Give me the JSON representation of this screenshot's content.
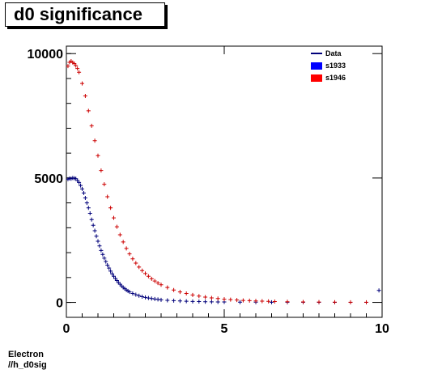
{
  "chart_data": {
    "type": "scatter",
    "title": "d0 significance",
    "xlim": [
      0,
      10
    ],
    "ylim": [
      -600,
      10300
    ],
    "x_ticks": [
      0,
      5,
      10
    ],
    "y_ticks": [
      0,
      5000,
      10000
    ],
    "legend_position": "top-right",
    "legend": [
      {
        "label": "Data",
        "style": "line",
        "color": "#00007a"
      },
      {
        "label": "s1933",
        "style": "box",
        "color": "#0000ff"
      },
      {
        "label": "s1946",
        "style": "box",
        "color": "#ff0000"
      }
    ],
    "series": [
      {
        "name": "s1933",
        "color": "#00007a",
        "x": [
          0.05,
          0.1,
          0.15,
          0.2,
          0.25,
          0.3,
          0.35,
          0.4,
          0.45,
          0.5,
          0.55,
          0.6,
          0.65,
          0.7,
          0.75,
          0.8,
          0.85,
          0.9,
          0.95,
          1.0,
          1.05,
          1.1,
          1.15,
          1.2,
          1.25,
          1.3,
          1.35,
          1.4,
          1.45,
          1.5,
          1.55,
          1.6,
          1.65,
          1.7,
          1.75,
          1.8,
          1.85,
          1.9,
          1.95,
          2.0,
          2.1,
          2.2,
          2.3,
          2.4,
          2.5,
          2.6,
          2.7,
          2.8,
          2.9,
          3.0,
          3.2,
          3.4,
          3.6,
          3.8,
          4.0,
          4.2,
          4.4,
          4.6,
          4.8,
          5.0,
          5.5,
          6.0,
          6.5,
          7.0,
          7.5,
          8.0,
          8.5,
          9.0,
          9.5,
          9.9
        ],
        "y": [
          4950,
          4980,
          4970,
          5000,
          4990,
          4970,
          4900,
          4820,
          4700,
          4560,
          4400,
          4200,
          4000,
          3800,
          3580,
          3330,
          3100,
          2880,
          2660,
          2460,
          2270,
          2090,
          1930,
          1780,
          1640,
          1500,
          1380,
          1260,
          1150,
          1050,
          960,
          880,
          800,
          730,
          660,
          600,
          550,
          500,
          460,
          420,
          360,
          310,
          270,
          230,
          200,
          175,
          155,
          135,
          120,
          105,
          85,
          70,
          58,
          48,
          40,
          34,
          28,
          24,
          20,
          17,
          12,
          9,
          7,
          5,
          4,
          3,
          2,
          2,
          1,
          480
        ]
      },
      {
        "name": "s1946",
        "color": "#cc0000",
        "x": [
          0.05,
          0.1,
          0.15,
          0.2,
          0.25,
          0.3,
          0.35,
          0.4,
          0.5,
          0.6,
          0.7,
          0.8,
          0.9,
          1.0,
          1.1,
          1.2,
          1.3,
          1.4,
          1.5,
          1.6,
          1.7,
          1.8,
          1.9,
          2.0,
          2.1,
          2.2,
          2.3,
          2.4,
          2.5,
          2.6,
          2.7,
          2.8,
          2.9,
          3.0,
          3.2,
          3.4,
          3.6,
          3.8,
          4.0,
          4.2,
          4.4,
          4.6,
          4.8,
          5.0,
          5.2,
          5.4,
          5.6,
          5.8,
          6.0,
          6.2,
          6.4,
          6.6,
          7.0,
          7.5,
          8.0,
          8.5,
          9.0,
          9.5
        ],
        "y": [
          9500,
          9650,
          9700,
          9640,
          9600,
          9520,
          9400,
          9250,
          8800,
          8300,
          7700,
          7100,
          6500,
          5900,
          5300,
          4750,
          4250,
          3800,
          3400,
          3040,
          2720,
          2430,
          2170,
          1950,
          1750,
          1580,
          1420,
          1280,
          1160,
          1050,
          950,
          860,
          780,
          710,
          600,
          500,
          420,
          360,
          300,
          255,
          215,
          180,
          155,
          130,
          110,
          95,
          80,
          70,
          60,
          50,
          42,
          36,
          27,
          20,
          15,
          10,
          7,
          5
        ]
      }
    ]
  },
  "footer": {
    "line1": "Electron",
    "line2": "//h_d0sig"
  }
}
